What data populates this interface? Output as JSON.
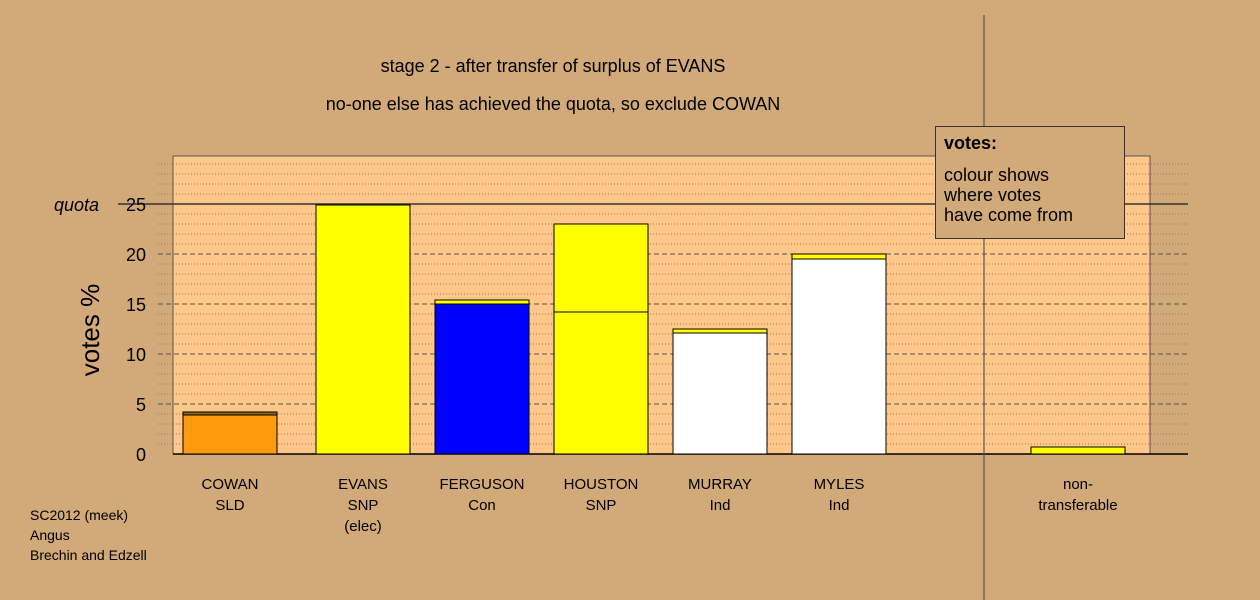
{
  "chart_data": {
    "type": "bar",
    "stacked": true,
    "title": "stage 2 - after transfer of surplus of EVANS",
    "subtitle": "no-one else has achieved the quota, so exclude COWAN",
    "ylabel": "votes %",
    "ylim": [
      0,
      30
    ],
    "yticks": [
      0,
      5,
      10,
      15,
      20,
      25
    ],
    "quota": {
      "label": "quota",
      "value": 25
    },
    "grid": true,
    "categories": [
      {
        "lines": [
          "COWAN",
          "SLD"
        ]
      },
      {
        "lines": [
          "EVANS",
          "SNP",
          "(elec)"
        ]
      },
      {
        "lines": [
          "FERGUSON",
          "Con"
        ]
      },
      {
        "lines": [
          "HOUSTON",
          "SNP"
        ]
      },
      {
        "lines": [
          "MURRAY",
          "Ind"
        ]
      },
      {
        "lines": [
          "MYLES",
          "Ind"
        ]
      },
      {
        "lines": [
          "non-",
          "transferable"
        ]
      }
    ],
    "bars": [
      {
        "segments": [
          {
            "value": 3.9,
            "color": "#ff9a0f"
          },
          {
            "value": 0.3,
            "color": "#8a6a1a"
          }
        ]
      },
      {
        "segments": [
          {
            "value": 24.9,
            "color": "#ffff00"
          }
        ]
      },
      {
        "segments": [
          {
            "value": 15.0,
            "color": "#0000ff"
          },
          {
            "value": 0.4,
            "color": "#ffff00"
          }
        ]
      },
      {
        "segments": [
          {
            "value": 14.2,
            "color": "#ffff00"
          },
          {
            "value": 8.8,
            "color": "#ffff00"
          }
        ]
      },
      {
        "segments": [
          {
            "value": 12.1,
            "color": "#ffffff"
          },
          {
            "value": 0.4,
            "color": "#ffff00"
          }
        ]
      },
      {
        "segments": [
          {
            "value": 19.5,
            "color": "#ffffff"
          },
          {
            "value": 0.5,
            "color": "#ffff00"
          }
        ]
      },
      {
        "segments": [
          {
            "value": 0.7,
            "color": "#ffff00"
          }
        ]
      }
    ]
  },
  "legend": {
    "heading": "votes:",
    "lines": [
      "colour shows",
      "where votes",
      "have come from"
    ]
  },
  "footer": {
    "lines": [
      "SC2012 (meek)",
      "Angus",
      "Brechin and Edzell"
    ]
  },
  "colors": {
    "background": "#d2a978",
    "plot_area": "#ffc88a"
  }
}
